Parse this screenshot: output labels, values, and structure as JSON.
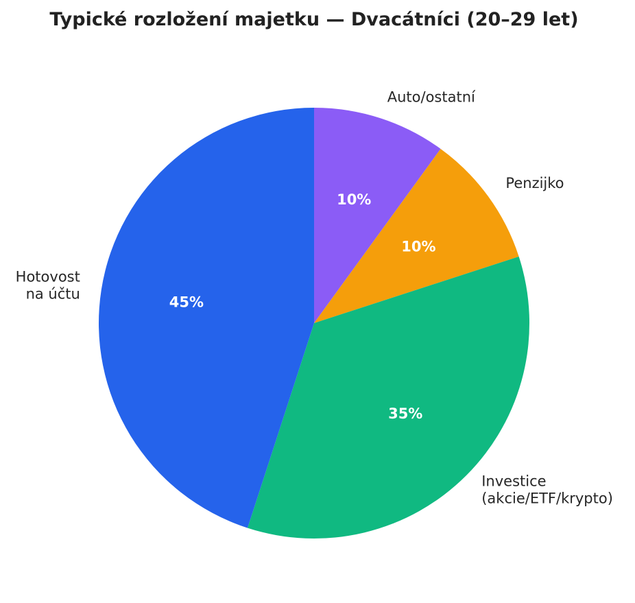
{
  "chart_data": {
    "type": "pie",
    "title": "Typické rozložení majetku — Dvacátníci (20–29 let)",
    "slices": [
      {
        "label": "Auto/ostatní",
        "label_lines": [
          "Auto/ostatní"
        ],
        "value": 10,
        "value_label": "10%",
        "color": "#8b5cf6"
      },
      {
        "label": "Penzijko",
        "label_lines": [
          "Penzijko"
        ],
        "value": 10,
        "value_label": "10%",
        "color": "#f59e0b"
      },
      {
        "label": "Investice (akcie/ETF/krypto)",
        "label_lines": [
          "Investice",
          "(akcie/ETF/krypto)"
        ],
        "value": 35,
        "value_label": "35%",
        "color": "#10b981"
      },
      {
        "label": "Hotovost na účtu",
        "label_lines": [
          "Hotovost",
          "na účtu"
        ],
        "value": 45,
        "value_label": "45%",
        "color": "#2563eb"
      }
    ],
    "start_angle": "12 o'clock",
    "direction": "clockwise",
    "legend": "none"
  }
}
